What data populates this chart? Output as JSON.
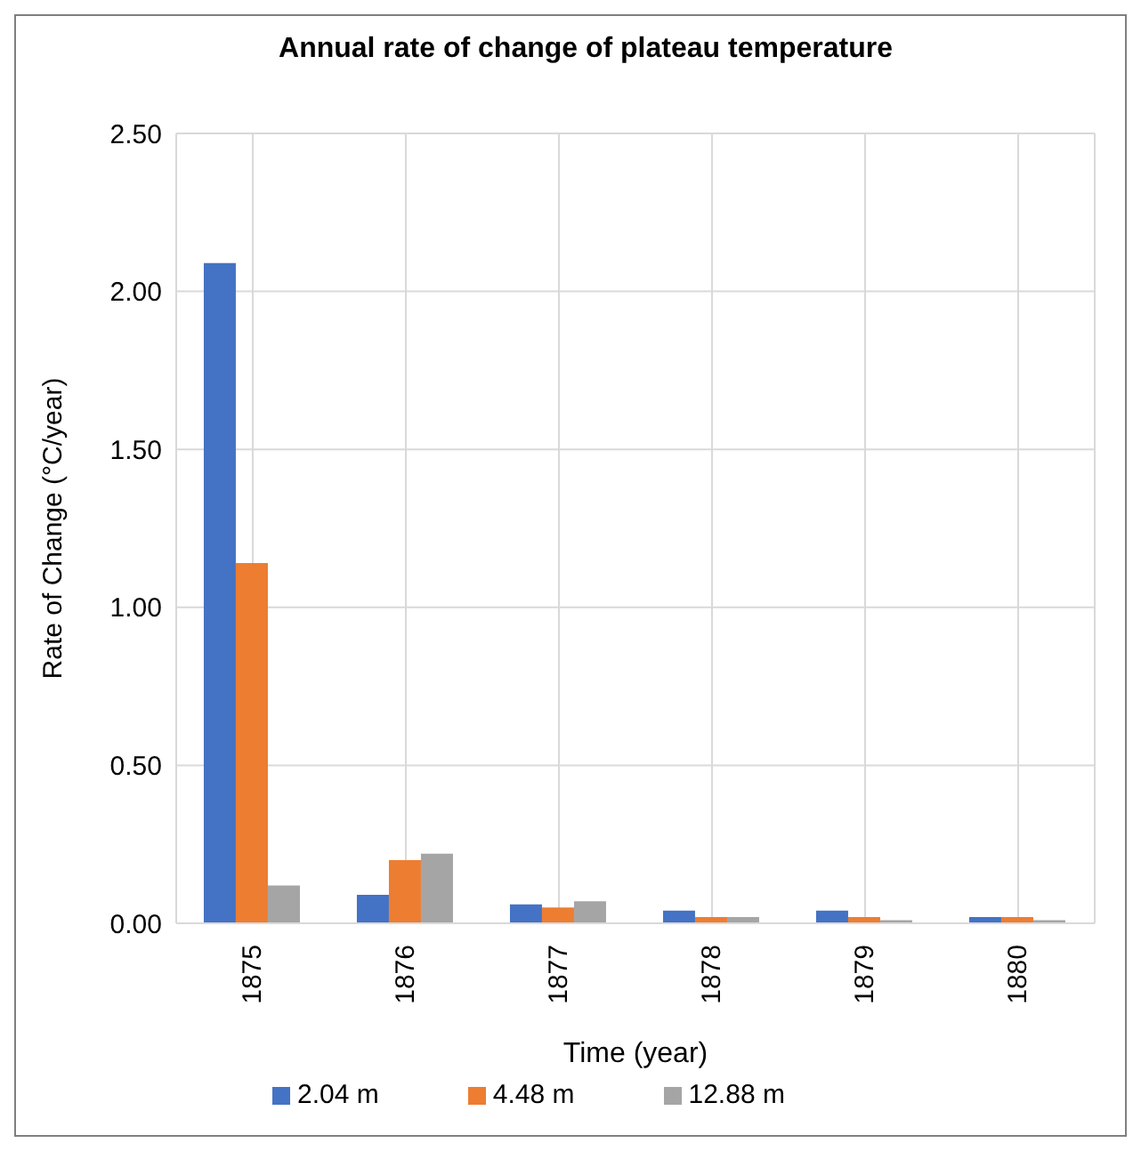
{
  "chart_data": {
    "type": "bar",
    "title": "Annual rate of change of plateau temperature",
    "xlabel": "Time (year)",
    "ylabel": "Rate of Change (°C/year)",
    "categories": [
      "1875",
      "1876",
      "1877",
      "1878",
      "1879",
      "1880"
    ],
    "series": [
      {
        "name": "2.04 m",
        "color": "#4472c4",
        "values": [
          2.09,
          0.09,
          0.06,
          0.04,
          0.04,
          0.02
        ]
      },
      {
        "name": "4.48 m",
        "color": "#ed7d31",
        "values": [
          1.14,
          0.2,
          0.05,
          0.02,
          0.02,
          0.02
        ]
      },
      {
        "name": "12.88 m",
        "color": "#a5a5a5",
        "values": [
          0.12,
          0.22,
          0.07,
          0.02,
          0.01,
          0.01
        ]
      }
    ],
    "ylim": [
      0,
      2.5
    ],
    "yticks": [
      {
        "value": 0,
        "label": "0.00"
      },
      {
        "value": 0.5,
        "label": "0.50"
      },
      {
        "value": 1,
        "label": "1.00"
      },
      {
        "value": 1.5,
        "label": "1.50"
      },
      {
        "value": 2,
        "label": "2.00"
      },
      {
        "value": 2.5,
        "label": "2.50"
      }
    ],
    "grid": true,
    "legend": "bottom"
  }
}
